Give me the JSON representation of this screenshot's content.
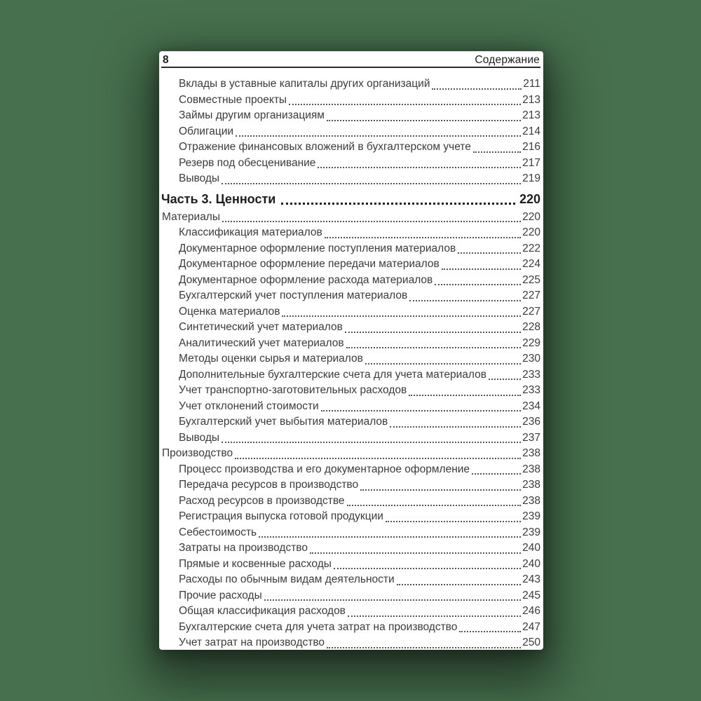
{
  "header": {
    "page_number": "8",
    "title": "Содержание"
  },
  "toc": {
    "entries": [
      {
        "label": "Вклады в уставные капиталы других организаций",
        "page": "211",
        "level": 2,
        "style": "entry"
      },
      {
        "label": "Совместные проекты",
        "page": "213",
        "level": 2,
        "style": "entry"
      },
      {
        "label": "Займы другим организациям",
        "page": "213",
        "level": 2,
        "style": "entry"
      },
      {
        "label": "Облигации",
        "page": "214",
        "level": 2,
        "style": "entry"
      },
      {
        "label": "Отражение финансовых вложений в бухгалтерском учете",
        "page": "216",
        "level": 2,
        "style": "entry"
      },
      {
        "label": "Резерв под обесценивание",
        "page": "217",
        "level": 2,
        "style": "entry"
      },
      {
        "label": "Выводы",
        "page": "219",
        "level": 2,
        "style": "entry"
      },
      {
        "label": "Часть 3. Ценности",
        "page": "220",
        "level": 0,
        "style": "part"
      },
      {
        "label": "Материалы",
        "page": "220",
        "level": 1,
        "style": "entry"
      },
      {
        "label": "Классификация материалов",
        "page": "220",
        "level": 2,
        "style": "entry"
      },
      {
        "label": "Документарное оформление поступления материалов",
        "page": "222",
        "level": 2,
        "style": "entry"
      },
      {
        "label": "Документарное оформление передачи материалов",
        "page": "224",
        "level": 2,
        "style": "entry"
      },
      {
        "label": "Документарное оформление расхода материалов",
        "page": "225",
        "level": 2,
        "style": "entry"
      },
      {
        "label": "Бухгалтерский учет поступления материалов",
        "page": "227",
        "level": 2,
        "style": "entry"
      },
      {
        "label": "Оценка материалов",
        "page": "227",
        "level": 2,
        "style": "entry"
      },
      {
        "label": "Синтетический учет материалов",
        "page": "228",
        "level": 2,
        "style": "entry"
      },
      {
        "label": "Аналитический учет материалов",
        "page": "229",
        "level": 2,
        "style": "entry"
      },
      {
        "label": "Методы оценки сырья и материалов",
        "page": "230",
        "level": 2,
        "style": "entry"
      },
      {
        "label": "Дополнительные бухгалтерские счета для учета материалов",
        "page": "233",
        "level": 2,
        "style": "entry"
      },
      {
        "label": "Учет транспортно-заготовительных расходов",
        "page": "233",
        "level": 2,
        "style": "entry"
      },
      {
        "label": "Учет отклонений стоимости",
        "page": "234",
        "level": 2,
        "style": "entry"
      },
      {
        "label": "Бухгалтерский учет выбытия материалов",
        "page": "236",
        "level": 2,
        "style": "entry"
      },
      {
        "label": "Выводы",
        "page": "237",
        "level": 2,
        "style": "entry"
      },
      {
        "label": "Производство",
        "page": "238",
        "level": 1,
        "style": "entry"
      },
      {
        "label": "Процесс производства и его документарное оформление",
        "page": "238",
        "level": 2,
        "style": "entry"
      },
      {
        "label": "Передача ресурсов в производство",
        "page": "238",
        "level": 2,
        "style": "entry"
      },
      {
        "label": "Расход ресурсов в производстве",
        "page": "238",
        "level": 2,
        "style": "entry"
      },
      {
        "label": "Регистрация выпуска готовой продукции",
        "page": "239",
        "level": 2,
        "style": "entry"
      },
      {
        "label": "Себестоимость",
        "page": "239",
        "level": 2,
        "style": "entry"
      },
      {
        "label": "Затраты на производство",
        "page": "240",
        "level": 2,
        "style": "entry"
      },
      {
        "label": "Прямые и косвенные расходы",
        "page": "240",
        "level": 2,
        "style": "entry"
      },
      {
        "label": "Расходы по обычным видам деятельности",
        "page": "243",
        "level": 2,
        "style": "entry"
      },
      {
        "label": "Прочие расходы",
        "page": "245",
        "level": 2,
        "style": "entry"
      },
      {
        "label": "Общая классификация расходов",
        "page": "246",
        "level": 2,
        "style": "entry"
      },
      {
        "label": "Бухгалтерские счета для учета затрат на производство",
        "page": "247",
        "level": 2,
        "style": "entry"
      },
      {
        "label": "Учет затрат на производство",
        "page": "250",
        "level": 2,
        "style": "entry"
      }
    ]
  },
  "colors": {
    "background": "#47704e",
    "page": "#ffffff",
    "text": "#3b3b3b",
    "heading": "#1d1d1d",
    "rule": "#2b2b2b",
    "dots": "#555555"
  }
}
